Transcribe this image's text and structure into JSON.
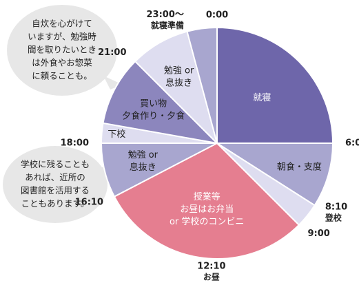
{
  "chart_data": {
    "type": "pie",
    "slices": [
      {
        "start": "0:00",
        "end": "6:00",
        "lines": [
          "就寝"
        ],
        "color": "#6e66aa",
        "text_color": "#ffffff"
      },
      {
        "start": "6:00",
        "end": "8:10",
        "lines": [
          "朝食・支度"
        ],
        "color": "#a8a6cf",
        "text_color": "#222222"
      },
      {
        "start": "8:10",
        "end": "9:00",
        "lines": [],
        "color": "#deddf0",
        "text_color": "#222222"
      },
      {
        "start": "9:00",
        "end": "16:10",
        "lines": [
          "授業等",
          "お昼はお弁当",
          "or 学校のコンビニ"
        ],
        "color": "#e57e90",
        "text_color": "#ffffff"
      },
      {
        "start": "16:10",
        "end": "18:00",
        "lines": [
          "勉強 or",
          "息抜き"
        ],
        "color": "#a8a6cf",
        "text_color": "#222222"
      },
      {
        "start": "18:00",
        "end": "18:40",
        "lines": [
          "下校"
        ],
        "color": "#deddf0",
        "text_color": "#222222"
      },
      {
        "start": "18:40",
        "end": "21:00",
        "lines": [
          "買い物",
          "夕食作り・夕食"
        ],
        "color": "#8c86bd",
        "text_color": "#222222"
      },
      {
        "start": "21:00",
        "end": "23:00",
        "lines": [
          "勉強 or",
          "息抜き"
        ],
        "color": "#deddf0",
        "text_color": "#222222"
      },
      {
        "start": "23:00",
        "end": "24:00",
        "lines": [],
        "color": "#a8a6cf",
        "text_color": "#222222"
      }
    ],
    "time_labels": [
      {
        "time": "0:00",
        "text": "0:00",
        "sub": ""
      },
      {
        "time": "6:00",
        "text": "6:00",
        "sub": ""
      },
      {
        "time": "8:10",
        "text": "8:10",
        "sub": "登校"
      },
      {
        "time": "9:00",
        "text": "9:00",
        "sub": ""
      },
      {
        "time": "12:10",
        "text": "12:10",
        "sub": "お昼"
      },
      {
        "time": "16:10",
        "text": "16:10",
        "sub": ""
      },
      {
        "time": "18:00",
        "text": "18:00",
        "sub": ""
      },
      {
        "time": "21:00",
        "text": "21:00",
        "sub": ""
      },
      {
        "time": "23:00",
        "text": "23:00～",
        "sub": "就寝準備"
      }
    ],
    "notes": [
      {
        "lines": [
          "自炊を心がけて",
          "いますが、勉強時",
          "間を取りたいとき",
          "は外食やお惣菜",
          "に頼ることも。"
        ]
      },
      {
        "lines": [
          "学校に残ることも",
          "あれば、近所の",
          "図書館を活用する",
          "こともあります。"
        ]
      }
    ]
  }
}
